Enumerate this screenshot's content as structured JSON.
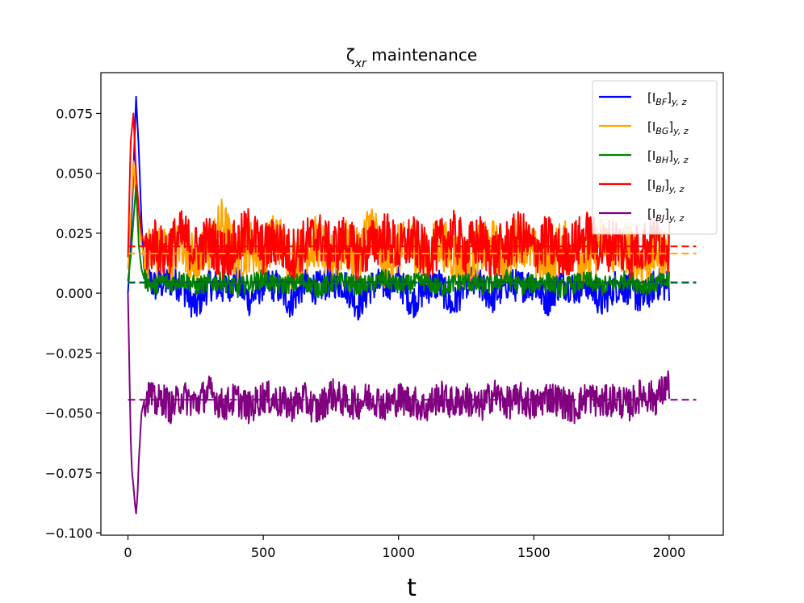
{
  "chart_data": {
    "type": "line",
    "title": "ζ̄xr maintenance",
    "title_parts": {
      "zeta": "ζ",
      "sub": "xr",
      "rest": " maintenance"
    },
    "xlabel": "t",
    "ylabel": "",
    "xlim": [
      -100,
      2200
    ],
    "ylim": [
      -0.101,
      0.092
    ],
    "xticks": [
      0,
      500,
      1000,
      1500,
      2000
    ],
    "xtick_labels": [
      "0",
      "500",
      "1000",
      "1500",
      "2000"
    ],
    "yticks": [
      -0.1,
      -0.075,
      -0.05,
      -0.025,
      0.0,
      0.025,
      0.05,
      0.075
    ],
    "ytick_labels": [
      "−0.100",
      "−0.075",
      "−0.050",
      "−0.025",
      "0.000",
      "0.025",
      "0.050",
      "0.075"
    ],
    "grid": false,
    "legend_position": "top-right",
    "mean_line_x": [
      0,
      2100
    ],
    "series": [
      {
        "name": "[I_BF]_{y,z}",
        "legend": {
          "base": "[I",
          "sub1": "BF",
          "mid": "]",
          "sub2": "y, z"
        },
        "color": "#0000ff",
        "mean": 0.0045,
        "start": 0.0,
        "noise": 0.007,
        "x": [
          0,
          10,
          20,
          30,
          40,
          50,
          60,
          80,
          100,
          130,
          160,
          200,
          250,
          300,
          350,
          400,
          450,
          500,
          550,
          600,
          650,
          700,
          750,
          800,
          850,
          900,
          950,
          1000,
          1050,
          1100,
          1150,
          1200,
          1250,
          1300,
          1350,
          1400,
          1450,
          1500,
          1550,
          1600,
          1650,
          1700,
          1750,
          1800,
          1850,
          1900,
          1950,
          2000
        ],
        "y": [
          0.0,
          0.02,
          0.05,
          0.082,
          0.06,
          0.03,
          0.01,
          0.005,
          0.003,
          0.004,
          0.005,
          0.003,
          -0.006,
          0.004,
          0.002,
          0.005,
          -0.003,
          0.004,
          0.003,
          -0.004,
          0.004,
          0.002,
          0.005,
          0.004,
          -0.005,
          0.003,
          0.004,
          0.005,
          -0.004,
          0.002,
          0.004,
          -0.006,
          0.005,
          0.003,
          -0.002,
          0.004,
          0.003,
          0.004,
          -0.003,
          0.005,
          0.002,
          0.004,
          -0.004,
          0.003,
          0.002,
          -0.003,
          0.004,
          0.003
        ]
      },
      {
        "name": "[I_BG]_{y,z}",
        "legend": {
          "base": "[I",
          "sub1": "BG",
          "mid": "]",
          "sub2": "y, z"
        },
        "color": "#ffa500",
        "mean": 0.0165,
        "start": 0.01,
        "noise": 0.011,
        "x": [
          0,
          10,
          20,
          30,
          40,
          50,
          60,
          80,
          100,
          130,
          160,
          200,
          250,
          300,
          350,
          400,
          450,
          500,
          550,
          600,
          650,
          700,
          750,
          800,
          850,
          900,
          950,
          1000,
          1050,
          1100,
          1150,
          1200,
          1250,
          1300,
          1350,
          1400,
          1450,
          1500,
          1550,
          1600,
          1650,
          1700,
          1750,
          1800,
          1850,
          1900,
          1950,
          2000
        ],
        "y": [
          0.01,
          0.03,
          0.055,
          0.04,
          0.03,
          0.02,
          0.015,
          0.018,
          0.014,
          0.02,
          0.016,
          0.022,
          0.012,
          0.018,
          0.03,
          0.014,
          0.02,
          0.016,
          0.025,
          0.012,
          0.018,
          0.022,
          0.014,
          0.02,
          0.016,
          0.03,
          0.012,
          0.018,
          0.02,
          0.014,
          0.022,
          0.016,
          0.012,
          0.018,
          0.02,
          0.014,
          0.024,
          0.016,
          0.012,
          0.02,
          0.018,
          0.014,
          0.022,
          0.016,
          0.02,
          0.012,
          0.018,
          0.016
        ]
      },
      {
        "name": "[I_BH]_{y,z}",
        "legend": {
          "base": "[I",
          "sub1": "BH",
          "mid": "]",
          "sub2": "y, z"
        },
        "color": "#008000",
        "mean": 0.0043,
        "start": 0.005,
        "noise": 0.004,
        "x": [
          0,
          10,
          20,
          30,
          40,
          50,
          60,
          80,
          100,
          130,
          160,
          200,
          250,
          300,
          350,
          400,
          450,
          500,
          550,
          600,
          650,
          700,
          750,
          800,
          850,
          900,
          950,
          1000,
          1050,
          1100,
          1150,
          1200,
          1250,
          1300,
          1350,
          1400,
          1450,
          1500,
          1550,
          1600,
          1650,
          1700,
          1750,
          1800,
          1850,
          1900,
          1950,
          2000
        ],
        "y": [
          0.005,
          0.015,
          0.03,
          0.045,
          0.02,
          0.01,
          0.006,
          0.004,
          0.003,
          0.005,
          0.004,
          0.006,
          0.003,
          0.004,
          0.005,
          0.002,
          0.004,
          0.006,
          0.003,
          0.004,
          0.005,
          0.002,
          0.004,
          0.005,
          0.003,
          0.004,
          0.006,
          0.003,
          0.004,
          0.005,
          0.002,
          0.004,
          0.005,
          0.003,
          0.004,
          0.006,
          0.003,
          0.004,
          0.005,
          0.002,
          0.004,
          0.005,
          0.003,
          0.004,
          0.006,
          0.003,
          0.004,
          0.005
        ]
      },
      {
        "name": "[I_BI]_{y,z}",
        "legend": {
          "base": "[I",
          "sub1": "BI",
          "mid": "]",
          "sub2": "y, z"
        },
        "color": "#ff0000",
        "mean": 0.0195,
        "start": 0.015,
        "noise": 0.011,
        "x": [
          0,
          10,
          20,
          30,
          40,
          50,
          60,
          80,
          100,
          130,
          160,
          200,
          250,
          300,
          350,
          400,
          450,
          500,
          550,
          600,
          650,
          700,
          750,
          800,
          850,
          900,
          950,
          1000,
          1050,
          1100,
          1150,
          1200,
          1250,
          1300,
          1350,
          1400,
          1450,
          1500,
          1550,
          1600,
          1650,
          1700,
          1750,
          1800,
          1850,
          1900,
          1950,
          2000
        ],
        "y": [
          0.015,
          0.063,
          0.075,
          0.05,
          0.035,
          0.025,
          0.02,
          0.018,
          0.022,
          0.016,
          0.02,
          0.024,
          0.018,
          0.022,
          0.016,
          0.02,
          0.026,
          0.018,
          0.022,
          0.016,
          0.02,
          0.024,
          0.018,
          0.022,
          0.016,
          0.02,
          0.024,
          0.018,
          0.022,
          0.016,
          0.02,
          0.024,
          0.018,
          0.022,
          0.016,
          0.02,
          0.024,
          0.018,
          0.022,
          0.016,
          0.02,
          0.024,
          0.018,
          0.022,
          0.016,
          0.02,
          0.022,
          0.02
        ]
      },
      {
        "name": "[I_BJ]_{y,z}",
        "legend": {
          "base": "[I",
          "sub1": "BJ",
          "mid": "]",
          "sub2": "y, z"
        },
        "color": "#800080",
        "mean": -0.0445,
        "start": 0.0,
        "noise": 0.007,
        "x": [
          0,
          5,
          10,
          15,
          20,
          25,
          30,
          35,
          40,
          50,
          60,
          80,
          100,
          130,
          160,
          200,
          250,
          300,
          350,
          400,
          450,
          500,
          550,
          600,
          650,
          700,
          750,
          800,
          850,
          900,
          950,
          1000,
          1050,
          1100,
          1150,
          1200,
          1250,
          1300,
          1350,
          1400,
          1450,
          1500,
          1550,
          1600,
          1650,
          1700,
          1750,
          1800,
          1850,
          1900,
          1950,
          2000
        ],
        "y": [
          0.0,
          -0.03,
          -0.06,
          -0.075,
          -0.08,
          -0.087,
          -0.092,
          -0.085,
          -0.07,
          -0.05,
          -0.045,
          -0.042,
          -0.046,
          -0.044,
          -0.048,
          -0.043,
          -0.046,
          -0.041,
          -0.047,
          -0.044,
          -0.048,
          -0.043,
          -0.045,
          -0.047,
          -0.044,
          -0.049,
          -0.042,
          -0.045,
          -0.046,
          -0.043,
          -0.047,
          -0.044,
          -0.045,
          -0.048,
          -0.043,
          -0.046,
          -0.044,
          -0.048,
          -0.042,
          -0.046,
          -0.044,
          -0.047,
          -0.043,
          -0.045,
          -0.048,
          -0.043,
          -0.046,
          -0.044,
          -0.047,
          -0.042,
          -0.044,
          -0.038
        ]
      }
    ]
  }
}
